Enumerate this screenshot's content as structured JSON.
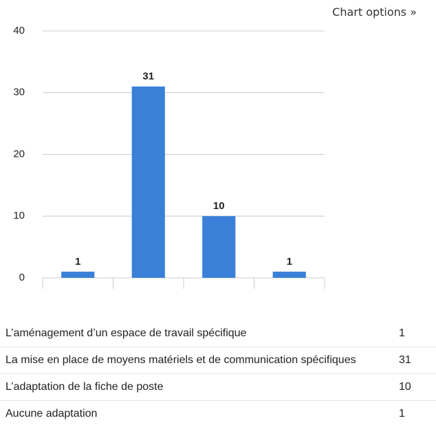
{
  "chart_options": "Chart options »",
  "chart_data": {
    "type": "bar",
    "categories": [
      "L’aménagement d’un espace de travail spécifique",
      "La mise en place de moyens matériels et de communication spécifiques",
      "L’adaptation de la fiche de poste",
      "Aucune adaptation"
    ],
    "values": [
      1,
      31,
      10,
      1
    ],
    "color": "#3a80d9",
    "ylim": [
      0,
      40
    ],
    "yticks": [
      0,
      10,
      20,
      30,
      40
    ],
    "grid": true
  }
}
